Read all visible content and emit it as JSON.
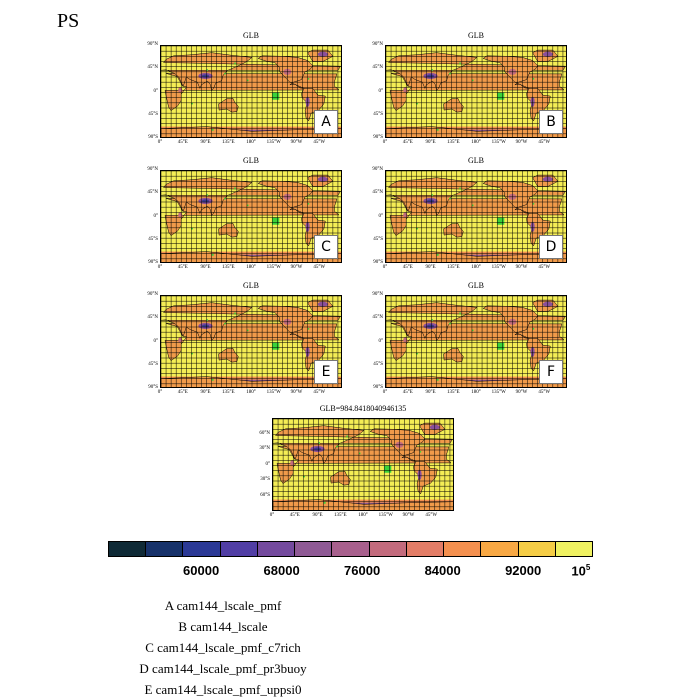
{
  "title": "PS",
  "colors": {
    "palette": [
      "#0f2a36",
      "#17326a",
      "#2b3996",
      "#513ea5",
      "#744a9e",
      "#8f5a95",
      "#a8608d",
      "#c36b7d",
      "#e37d67",
      "#f4904f",
      "#f8a844",
      "#f5cd46",
      "#f0f262"
    ],
    "land_high": "#f4ed55",
    "land_mid": "#f09a4a",
    "land_low": "#8a4f9a",
    "land_lowest": "#3a3a90",
    "dots": "#3ad33a",
    "grid": "#000000"
  },
  "chart_data": {
    "type": "heatmap",
    "variable": "PS",
    "map_projection": "cylindrical equidistant",
    "lat_ticks": [
      "90°N",
      "45°N",
      "0°",
      "45°S",
      "90°S"
    ],
    "lat_ticks_diff": [
      "60°N",
      "30°N",
      "0°",
      "30°S",
      "60°S"
    ],
    "lon_ticks": [
      "0°",
      "45°E",
      "90°E",
      "135°E",
      "180°",
      "135°W",
      "90°W",
      "45°W"
    ],
    "panels": [
      {
        "tag": "A",
        "title": "GLB"
      },
      {
        "tag": "B",
        "title": "GLB"
      },
      {
        "tag": "C",
        "title": "GLB"
      },
      {
        "tag": "D",
        "title": "GLB"
      },
      {
        "tag": "E",
        "title": "GLB"
      },
      {
        "tag": "F",
        "title": "GLB"
      },
      {
        "tag": "",
        "title": "GLB=984.8418040946135"
      }
    ],
    "colorbar": {
      "levels": 13,
      "labels": [
        {
          "text": "60000",
          "pos": 0.192
        },
        {
          "text": "68000",
          "pos": 0.358
        },
        {
          "text": "76000",
          "pos": 0.524
        },
        {
          "text": "84000",
          "pos": 0.69
        },
        {
          "text": "92000",
          "pos": 0.856
        },
        {
          "text": "10",
          "sup": "5",
          "pos": 0.975
        }
      ]
    }
  },
  "legend": [
    "A  cam144_lscale_pmf",
    "B  cam144_lscale",
    "C  cam144_lscale_pmf_c7rich",
    "D  cam144_lscale_pmf_pr3buoy",
    "E  cam144_lscale_pmf_uppsi0"
  ]
}
